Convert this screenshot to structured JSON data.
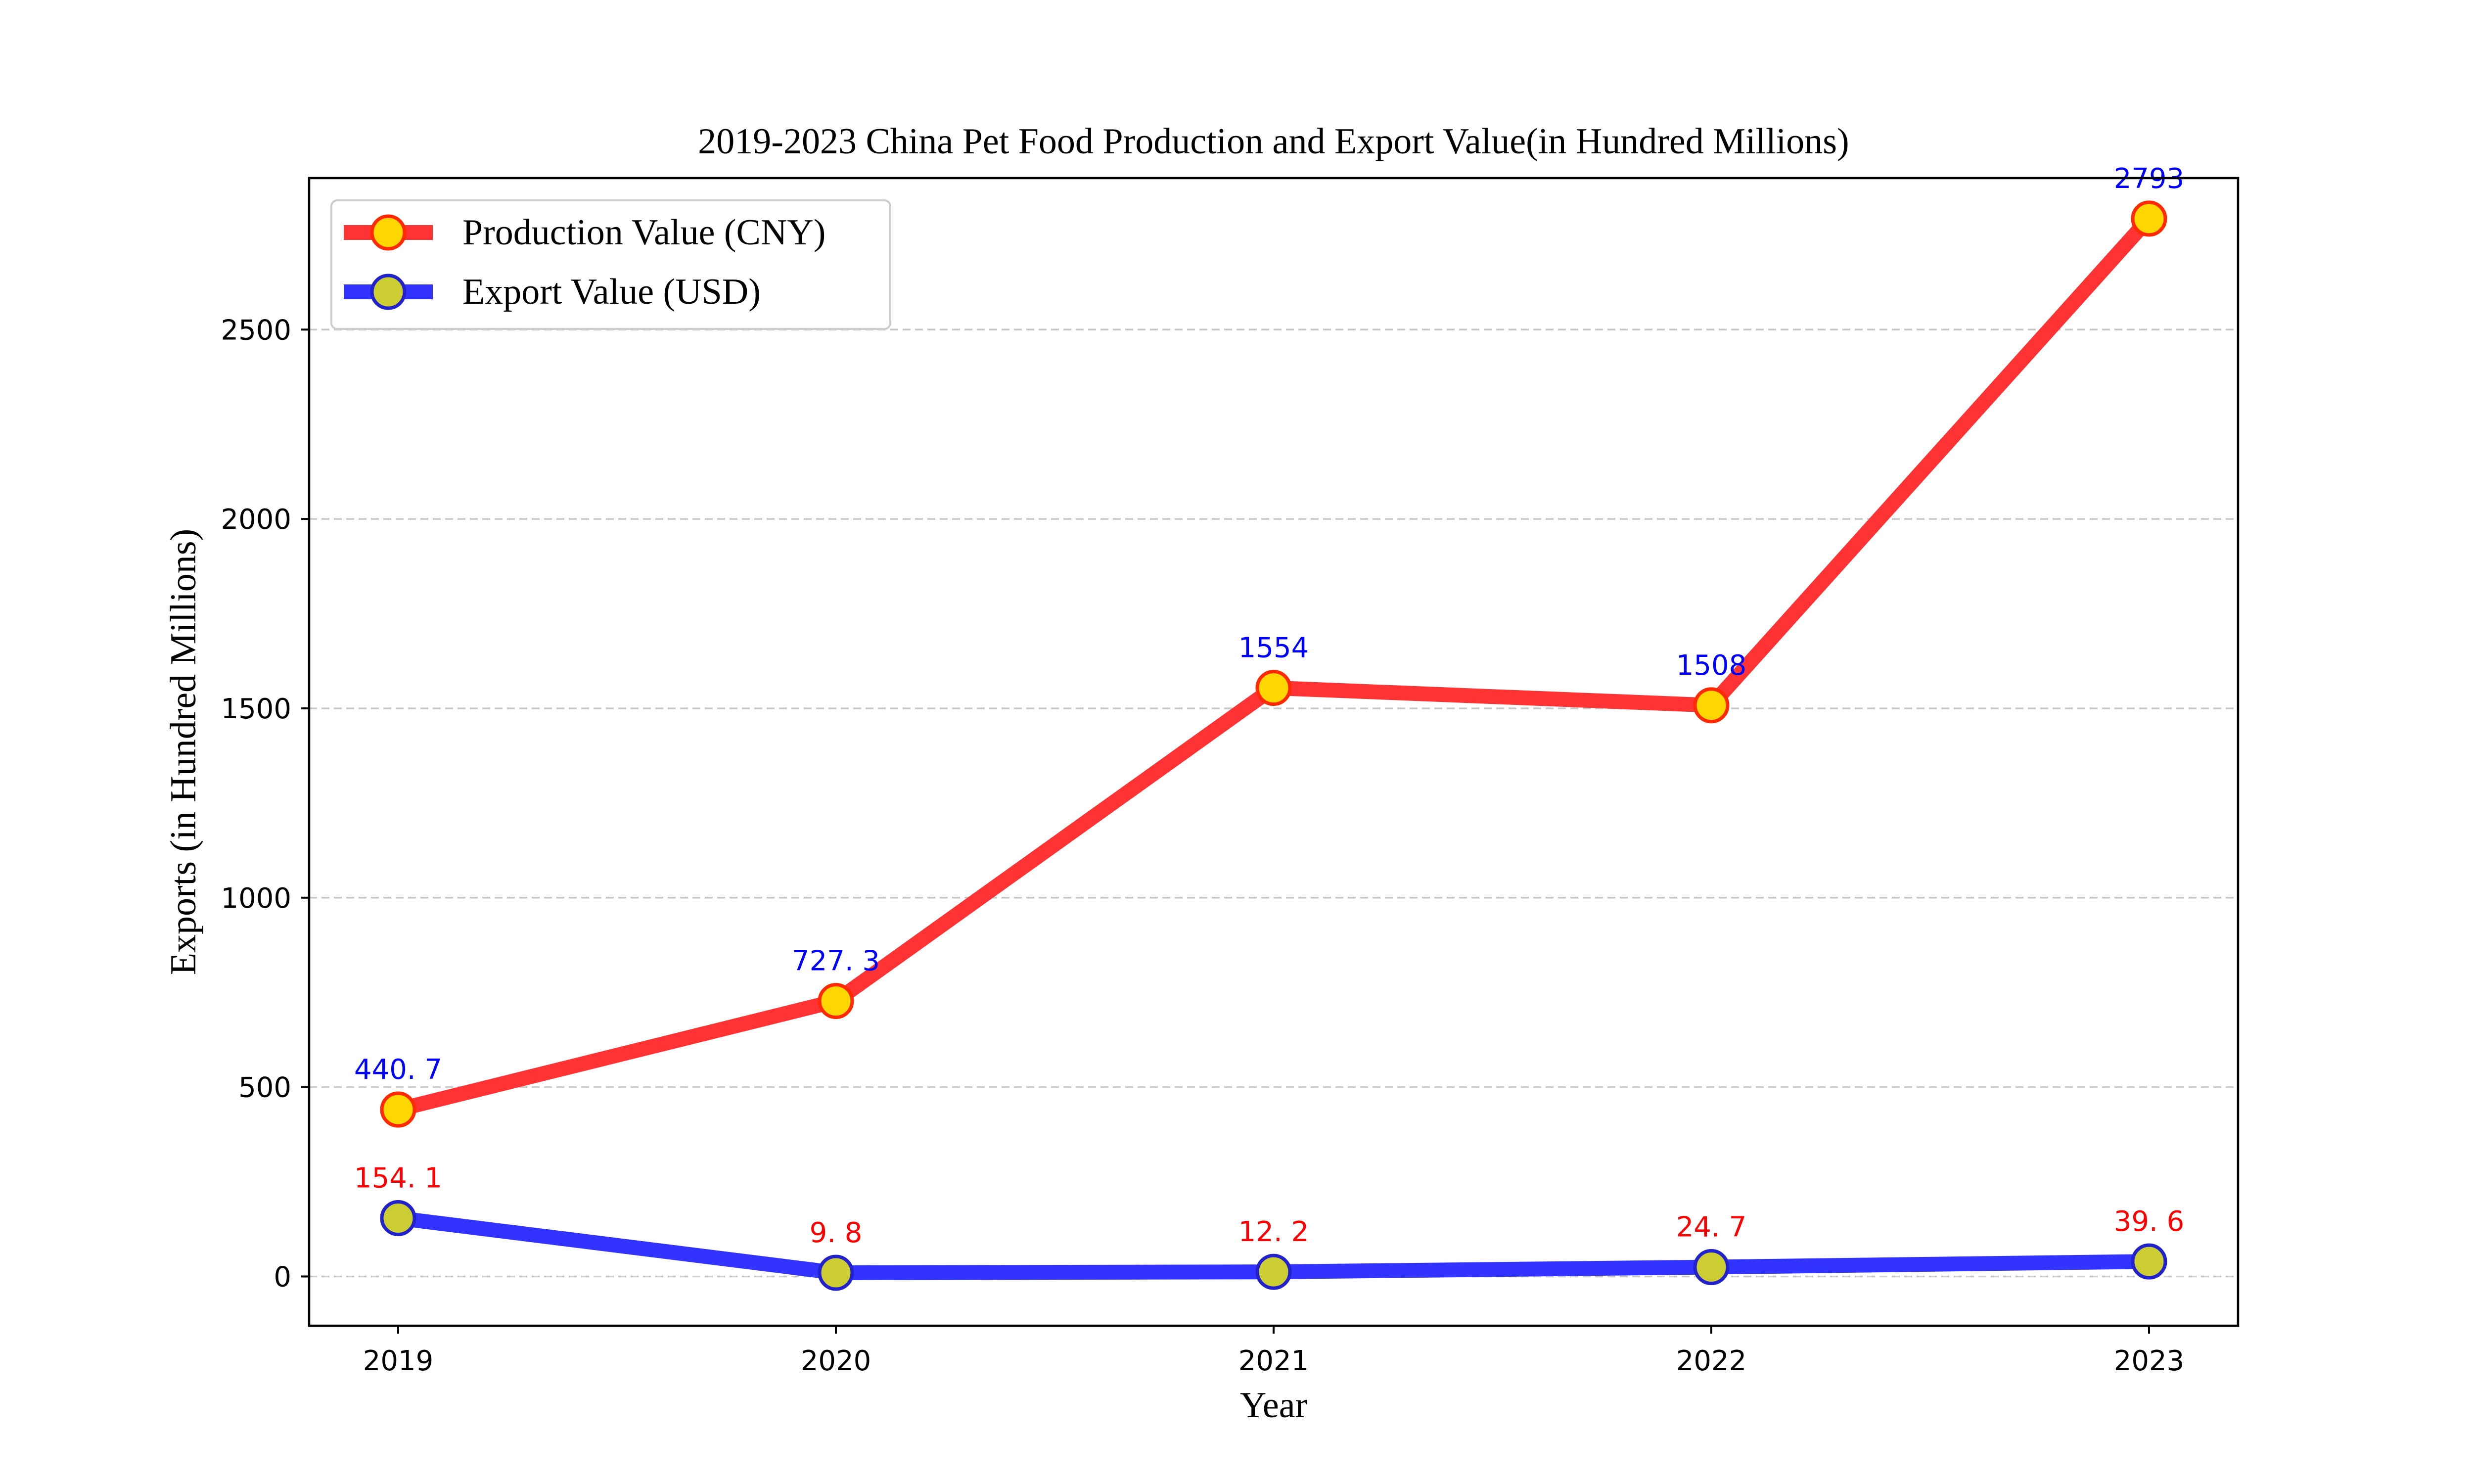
{
  "chart_data": {
    "type": "line",
    "title": "2019-2023 China Pet Food Production and Export Value(in Hundred Millions)",
    "xlabel": "Year",
    "ylabel": "Exports (in Hundred Millions)",
    "categories": [
      "2019",
      "2020",
      "2021",
      "2022",
      "2023"
    ],
    "ylim": [
      -130,
      2900
    ],
    "yticks": [
      0,
      500,
      1000,
      1500,
      2000,
      2500
    ],
    "grid": "horizontal-dashed",
    "legend_position": "top-left",
    "series": [
      {
        "name": "Production Value (CNY)",
        "values": [
          440.7,
          727.3,
          1554,
          1508,
          2793
        ],
        "labels": [
          "440. 7",
          "727. 3",
          "1554",
          "1508",
          "2793"
        ],
        "line_color": "#ff3333",
        "marker_edge": "#ff2a00",
        "marker_fill": "#ffd700",
        "label_color": "#0000ff"
      },
      {
        "name": "Export Value (USD)",
        "values": [
          154.1,
          9.8,
          12.2,
          24.7,
          39.6
        ],
        "labels": [
          "154. 1",
          "9. 8",
          "12. 2",
          "24. 7",
          "39. 6"
        ],
        "line_color": "#3333ff",
        "marker_edge": "#2222cc",
        "marker_fill": "#cccc33",
        "label_color": "#ff0000"
      }
    ]
  }
}
